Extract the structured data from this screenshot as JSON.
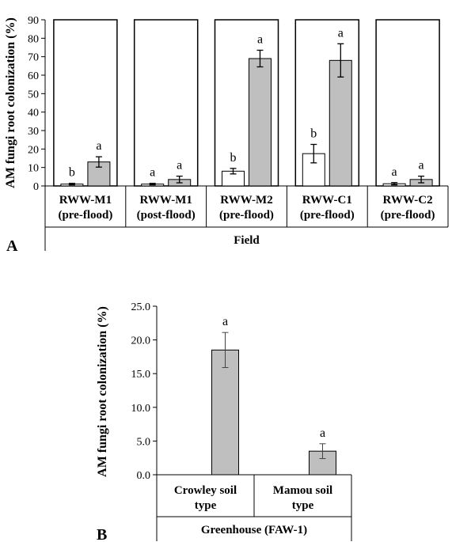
{
  "chart_data": [
    {
      "type": "bar",
      "panel_label": "A",
      "ylabel": "AM fungi root colonization (%)",
      "xlabel": "Field",
      "ylim": [
        0,
        90
      ],
      "yticks": [
        "0",
        "10",
        "20",
        "30",
        "40",
        "50",
        "60",
        "70",
        "80",
        "90"
      ],
      "groups": [
        {
          "line1": "RWW-M1",
          "line2": "(pre-flood)",
          "bars": [
            {
              "fill": "#ffffff",
              "value": 1.0,
              "err": 0.4,
              "sig": "b"
            },
            {
              "fill": "#bfbfbf",
              "value": 13.0,
              "err": 2.8,
              "sig": "a"
            }
          ]
        },
        {
          "line1": "RWW-M1",
          "line2": "(post-flood)",
          "bars": [
            {
              "fill": "#ffffff",
              "value": 1.0,
              "err": 0.4,
              "sig": "a"
            },
            {
              "fill": "#bfbfbf",
              "value": 3.5,
              "err": 1.8,
              "sig": "a"
            }
          ]
        },
        {
          "line1": "RWW-M2",
          "line2": "(pre-flood)",
          "bars": [
            {
              "fill": "#ffffff",
              "value": 8.0,
              "err": 1.5,
              "sig": "b"
            },
            {
              "fill": "#bfbfbf",
              "value": 69.0,
              "err": 4.5,
              "sig": "a"
            }
          ]
        },
        {
          "line1": "RWW-C1",
          "line2": "(pre-flood)",
          "bars": [
            {
              "fill": "#ffffff",
              "value": 17.5,
              "err": 5.0,
              "sig": "b"
            },
            {
              "fill": "#bfbfbf",
              "value": 68.0,
              "err": 9.0,
              "sig": "a"
            }
          ]
        },
        {
          "line1": "RWW-C2",
          "line2": "(pre-flood)",
          "bars": [
            {
              "fill": "#ffffff",
              "value": 1.2,
              "err": 0.6,
              "sig": "a"
            },
            {
              "fill": "#bfbfbf",
              "value": 3.5,
              "err": 1.8,
              "sig": "a"
            }
          ]
        }
      ]
    },
    {
      "type": "bar",
      "panel_label": "B",
      "ylabel": "AM fungi root colonization (%)",
      "xlabel": "Greenhouse (FAW-1)",
      "ylim": [
        0,
        25
      ],
      "yticks": [
        "0.0",
        "5.0",
        "10.0",
        "15.0",
        "20.0",
        "25.0"
      ],
      "groups": [
        {
          "line1": "Crowley soil",
          "line2": "type",
          "bars": [
            {
              "fill": "#bfbfbf",
              "value": 18.5,
              "err": 2.6,
              "sig": "a"
            }
          ]
        },
        {
          "line1": "Mamou soil",
          "line2": "type",
          "bars": [
            {
              "fill": "#bfbfbf",
              "value": 3.5,
              "err": 1.1,
              "sig": "a"
            }
          ]
        }
      ]
    }
  ]
}
